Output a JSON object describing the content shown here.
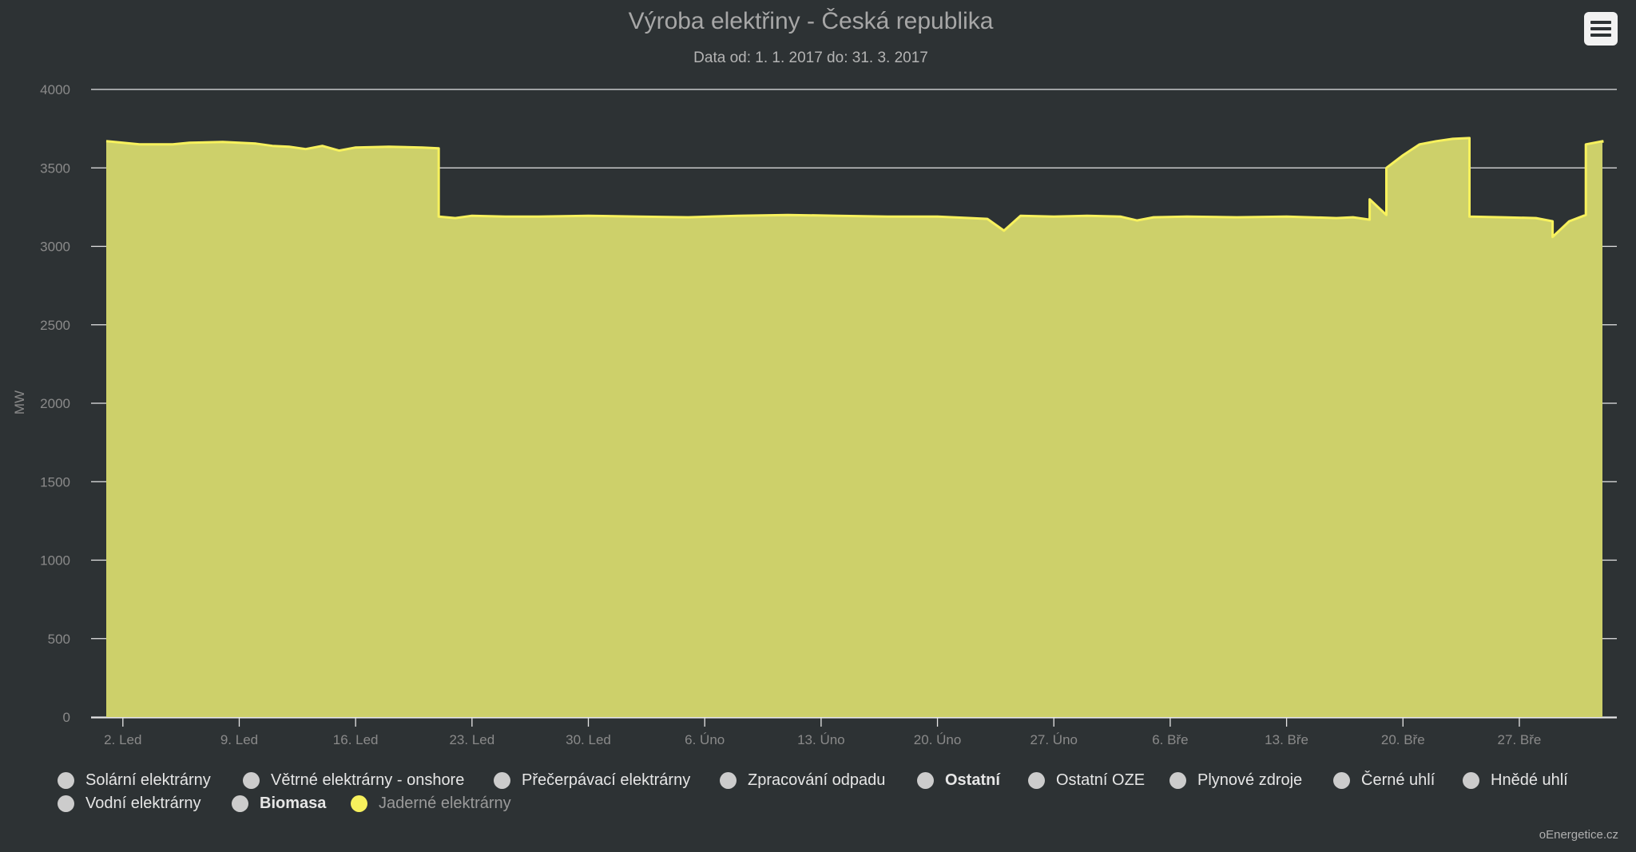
{
  "chart_data": {
    "type": "area",
    "title": "Výroba elektřiny - Česká republika",
    "subtitle": "Data od: 1. 1. 2017 do: 31. 3. 2017",
    "ylabel": "MW",
    "ylim": [
      0,
      4000
    ],
    "yticks": [
      0,
      500,
      1000,
      1500,
      2000,
      2500,
      3000,
      3500,
      4000
    ],
    "xlim": [
      "2017-01-01",
      "2017-03-31"
    ],
    "xticks": [
      {
        "date": "2017-01-02",
        "label": "2. Led"
      },
      {
        "date": "2017-01-09",
        "label": "9. Led"
      },
      {
        "date": "2017-01-16",
        "label": "16. Led"
      },
      {
        "date": "2017-01-23",
        "label": "23. Led"
      },
      {
        "date": "2017-01-30",
        "label": "30. Led"
      },
      {
        "date": "2017-02-06",
        "label": "6. Úno"
      },
      {
        "date": "2017-02-13",
        "label": "13. Úno"
      },
      {
        "date": "2017-02-20",
        "label": "20. Úno"
      },
      {
        "date": "2017-02-27",
        "label": "27. Úno"
      },
      {
        "date": "2017-03-06",
        "label": "6. Bře"
      },
      {
        "date": "2017-03-13",
        "label": "13. Bře"
      },
      {
        "date": "2017-03-20",
        "label": "20. Bře"
      },
      {
        "date": "2017-03-27",
        "label": "27. Bře"
      }
    ],
    "grid": true,
    "legend_position": "bottom",
    "series": [
      {
        "name": "Jaderné elektrárny",
        "color": "#f7f15d",
        "fill": "#cdd06a",
        "points": [
          [
            "2017-01-01",
            3670
          ],
          [
            "2017-01-02",
            3660
          ],
          [
            "2017-01-03",
            3650
          ],
          [
            "2017-01-05",
            3650
          ],
          [
            "2017-01-06",
            3660
          ],
          [
            "2017-01-08",
            3665
          ],
          [
            "2017-01-10",
            3655
          ],
          [
            "2017-01-11",
            3640
          ],
          [
            "2017-01-12",
            3635
          ],
          [
            "2017-01-13",
            3620
          ],
          [
            "2017-01-14",
            3640
          ],
          [
            "2017-01-15",
            3610
          ],
          [
            "2017-01-16",
            3630
          ],
          [
            "2017-01-18",
            3635
          ],
          [
            "2017-01-20",
            3630
          ],
          [
            "2017-01-21",
            3625
          ],
          [
            "2017-01-21",
            3190
          ],
          [
            "2017-01-22",
            3180
          ],
          [
            "2017-01-23",
            3195
          ],
          [
            "2017-01-25",
            3190
          ],
          [
            "2017-01-27",
            3190
          ],
          [
            "2017-01-30",
            3195
          ],
          [
            "2017-02-02",
            3190
          ],
          [
            "2017-02-05",
            3185
          ],
          [
            "2017-02-08",
            3195
          ],
          [
            "2017-02-11",
            3200
          ],
          [
            "2017-02-14",
            3195
          ],
          [
            "2017-02-17",
            3190
          ],
          [
            "2017-02-20",
            3190
          ],
          [
            "2017-02-22",
            3180
          ],
          [
            "2017-02-23",
            3175
          ],
          [
            "2017-02-24",
            3100
          ],
          [
            "2017-02-25",
            3195
          ],
          [
            "2017-02-27",
            3190
          ],
          [
            "2017-03-01",
            3195
          ],
          [
            "2017-03-03",
            3190
          ],
          [
            "2017-03-04",
            3165
          ],
          [
            "2017-03-05",
            3185
          ],
          [
            "2017-03-07",
            3190
          ],
          [
            "2017-03-10",
            3185
          ],
          [
            "2017-03-13",
            3190
          ],
          [
            "2017-03-16",
            3180
          ],
          [
            "2017-03-17",
            3185
          ],
          [
            "2017-03-18",
            3170
          ],
          [
            "2017-03-18",
            3300
          ],
          [
            "2017-03-19",
            3200
          ],
          [
            "2017-03-19",
            3500
          ],
          [
            "2017-03-20",
            3580
          ],
          [
            "2017-03-21",
            3650
          ],
          [
            "2017-03-22",
            3670
          ],
          [
            "2017-03-23",
            3685
          ],
          [
            "2017-03-24",
            3690
          ],
          [
            "2017-03-24",
            3190
          ],
          [
            "2017-03-26",
            3185
          ],
          [
            "2017-03-28",
            3180
          ],
          [
            "2017-03-29",
            3160
          ],
          [
            "2017-03-29",
            3060
          ],
          [
            "2017-03-30",
            3160
          ],
          [
            "2017-03-31",
            3200
          ],
          [
            "2017-03-31",
            3650
          ],
          [
            "2017-04-01",
            3670
          ],
          [
            "2017-04-01",
            3660
          ]
        ]
      }
    ]
  },
  "legend": {
    "items": [
      {
        "label": "Solární elektrárny",
        "color": "#cccccc",
        "bold": false,
        "active": false
      },
      {
        "label": "Větrné elektrárny - onshore",
        "color": "#cccccc",
        "bold": false,
        "active": false
      },
      {
        "label": "Přečerpávací elektrárny",
        "color": "#cccccc",
        "bold": false,
        "active": false
      },
      {
        "label": "Zpracování odpadu",
        "color": "#cccccc",
        "bold": false,
        "active": false
      },
      {
        "label": "Ostatní",
        "color": "#cccccc",
        "bold": true,
        "active": false
      },
      {
        "label": "Ostatní OZE",
        "color": "#cccccc",
        "bold": false,
        "active": false
      },
      {
        "label": "Plynové zdroje",
        "color": "#cccccc",
        "bold": false,
        "active": false
      },
      {
        "label": "Černé uhlí",
        "color": "#cccccc",
        "bold": false,
        "active": false
      },
      {
        "label": "Hnědé uhlí",
        "color": "#cccccc",
        "bold": false,
        "active": false
      },
      {
        "label": "Vodní elektrárny",
        "color": "#cccccc",
        "bold": false,
        "active": false
      },
      {
        "label": "Biomasa",
        "color": "#cccccc",
        "bold": true,
        "active": false
      },
      {
        "label": "Jaderné elektrárny",
        "color": "#f7f15d",
        "bold": false,
        "active": true
      }
    ]
  },
  "menu": {
    "icon": "hamburger-menu-icon"
  },
  "credits": "oEnergetice.cz",
  "colors": {
    "background": "#2d3234",
    "grid": "#e6e6e6",
    "axis_text": "#8a8a8a"
  }
}
